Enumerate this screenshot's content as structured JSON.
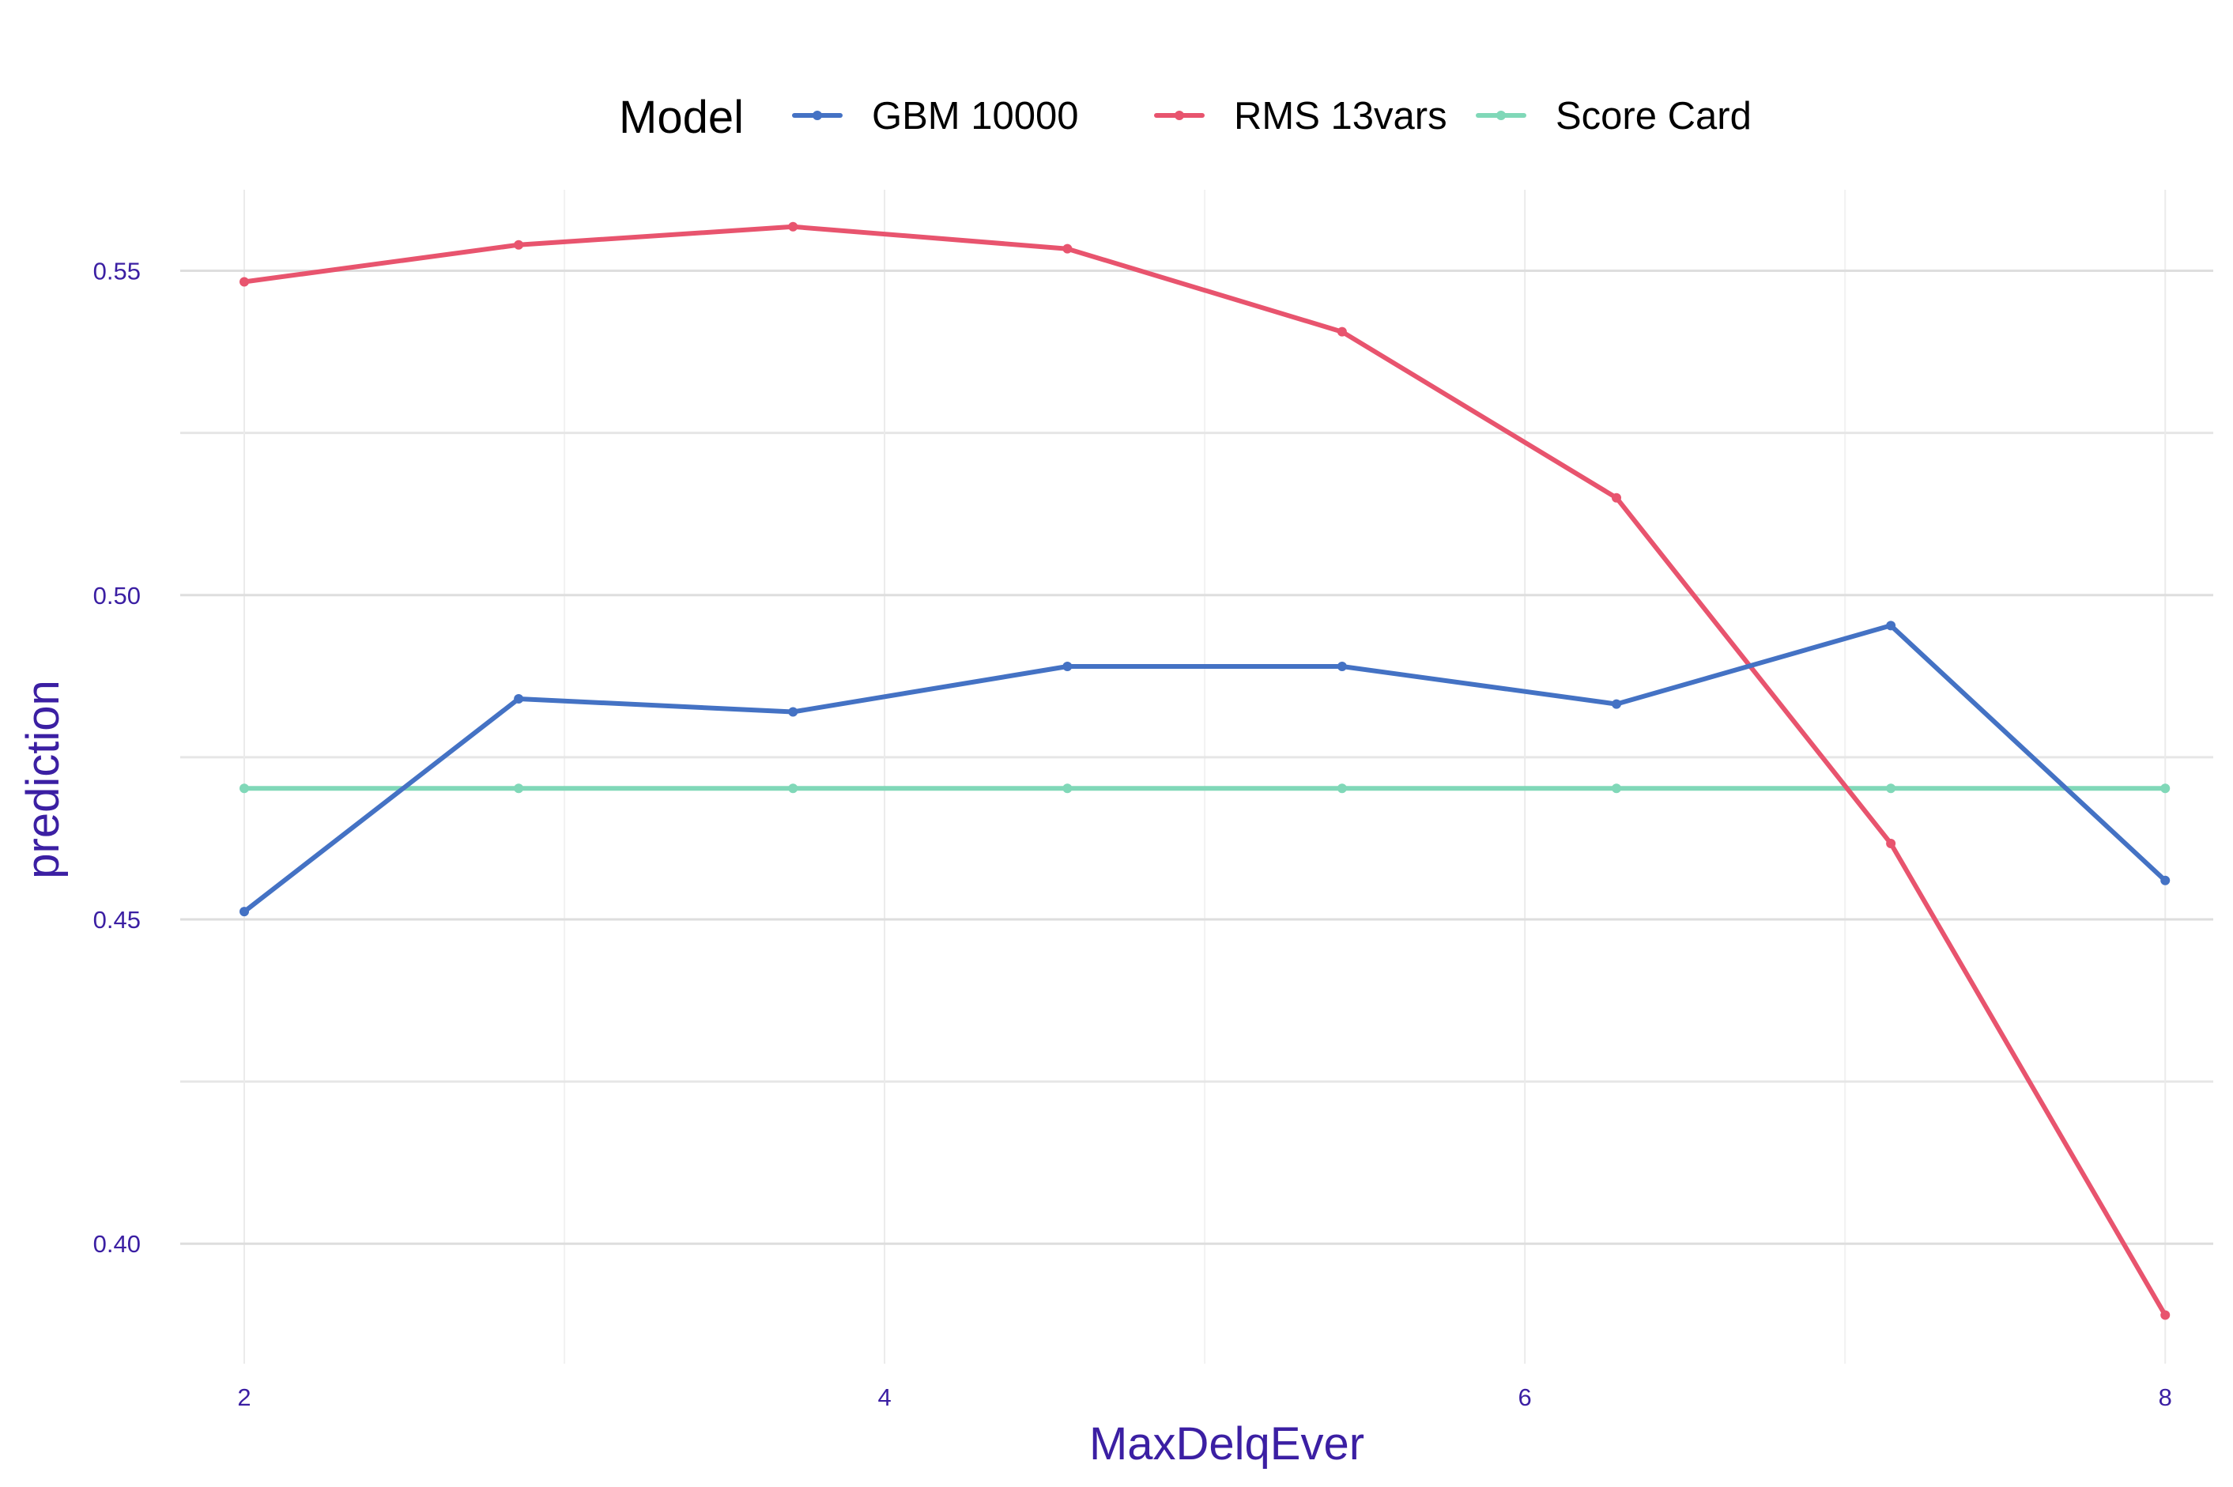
{
  "chart_data": {
    "type": "line",
    "title": "",
    "xlabel": "MaxDelqEver",
    "ylabel": "prediction",
    "legend": {
      "title": "Model",
      "position": "top"
    },
    "x": [
      2,
      2.857,
      3.714,
      4.571,
      5.429,
      6.286,
      7.143,
      8
    ],
    "xlim": [
      1.8,
      8.15
    ],
    "ylim": [
      0.3815,
      0.5625
    ],
    "x_ticks": [
      2,
      4,
      6,
      8
    ],
    "x_tick_labels": [
      "2",
      "4",
      "6",
      "8"
    ],
    "y_ticks": [
      0.4,
      0.45,
      0.5,
      0.55
    ],
    "y_tick_labels": [
      "0.40",
      "0.45",
      "0.50",
      "0.55"
    ],
    "x_minor_ticks": [
      3,
      5,
      7
    ],
    "y_minor_ticks": [
      0.425,
      0.475,
      0.525
    ],
    "grid": true,
    "series": [
      {
        "name": "GBM 10000",
        "color": "#4472c4",
        "values": [
          0.4512,
          0.484,
          0.482,
          0.489,
          0.489,
          0.4832,
          0.4953,
          0.456
        ]
      },
      {
        "name": "RMS 13vars",
        "color": "#e8546e",
        "values": [
          0.5483,
          0.554,
          0.5568,
          0.5534,
          0.5406,
          0.515,
          0.4617,
          0.389
        ]
      },
      {
        "name": "Score Card",
        "color": "#80d8b8",
        "values": [
          0.4702,
          0.4702,
          0.4702,
          0.4702,
          0.4702,
          0.4702,
          0.4702,
          0.4702
        ]
      }
    ]
  }
}
